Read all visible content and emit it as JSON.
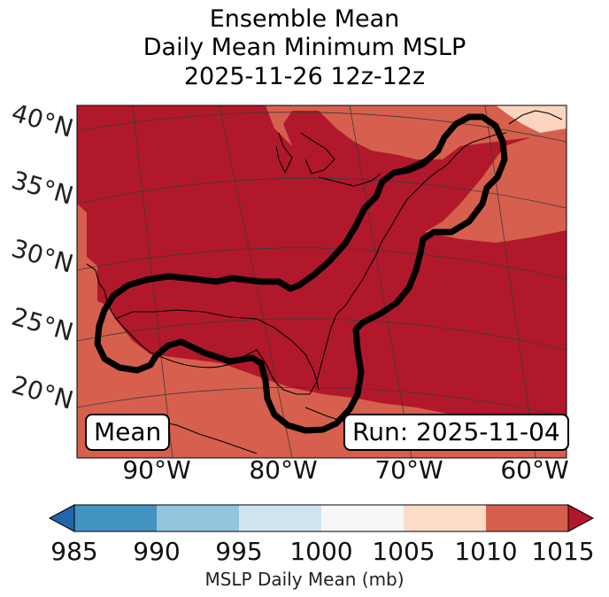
{
  "title": {
    "line1": "Ensemble Mean",
    "line2": "Daily Mean Minimum MSLP",
    "line3": "2025-11-26 12z-12z"
  },
  "map": {
    "lat_labels": [
      "40°N",
      "35°N",
      "30°N",
      "25°N",
      "20°N"
    ],
    "lon_labels": [
      "90°W",
      "80°W",
      "70°W",
      "60°W"
    ],
    "badge_left": "Mean",
    "badge_right": "Run: 2025-11-04",
    "colors": {
      "level_1005_1010": "#fcd5c0",
      "level_1010_1015": "#d6604d",
      "level_above_1015": "#b2182b",
      "land_outline": "#000000",
      "contour": "#000000",
      "grid": "#3a3a3a"
    }
  },
  "colorbar": {
    "ticks": [
      "985",
      "990",
      "995",
      "1000",
      "1005",
      "1010",
      "1015"
    ],
    "label": "MSLP Daily Mean (mb)",
    "colors": [
      "#2166ac",
      "#4393c3",
      "#92c5de",
      "#d1e5f0",
      "#f7f7f7",
      "#fddbc7",
      "#d6604d",
      "#b2182b"
    ]
  }
}
